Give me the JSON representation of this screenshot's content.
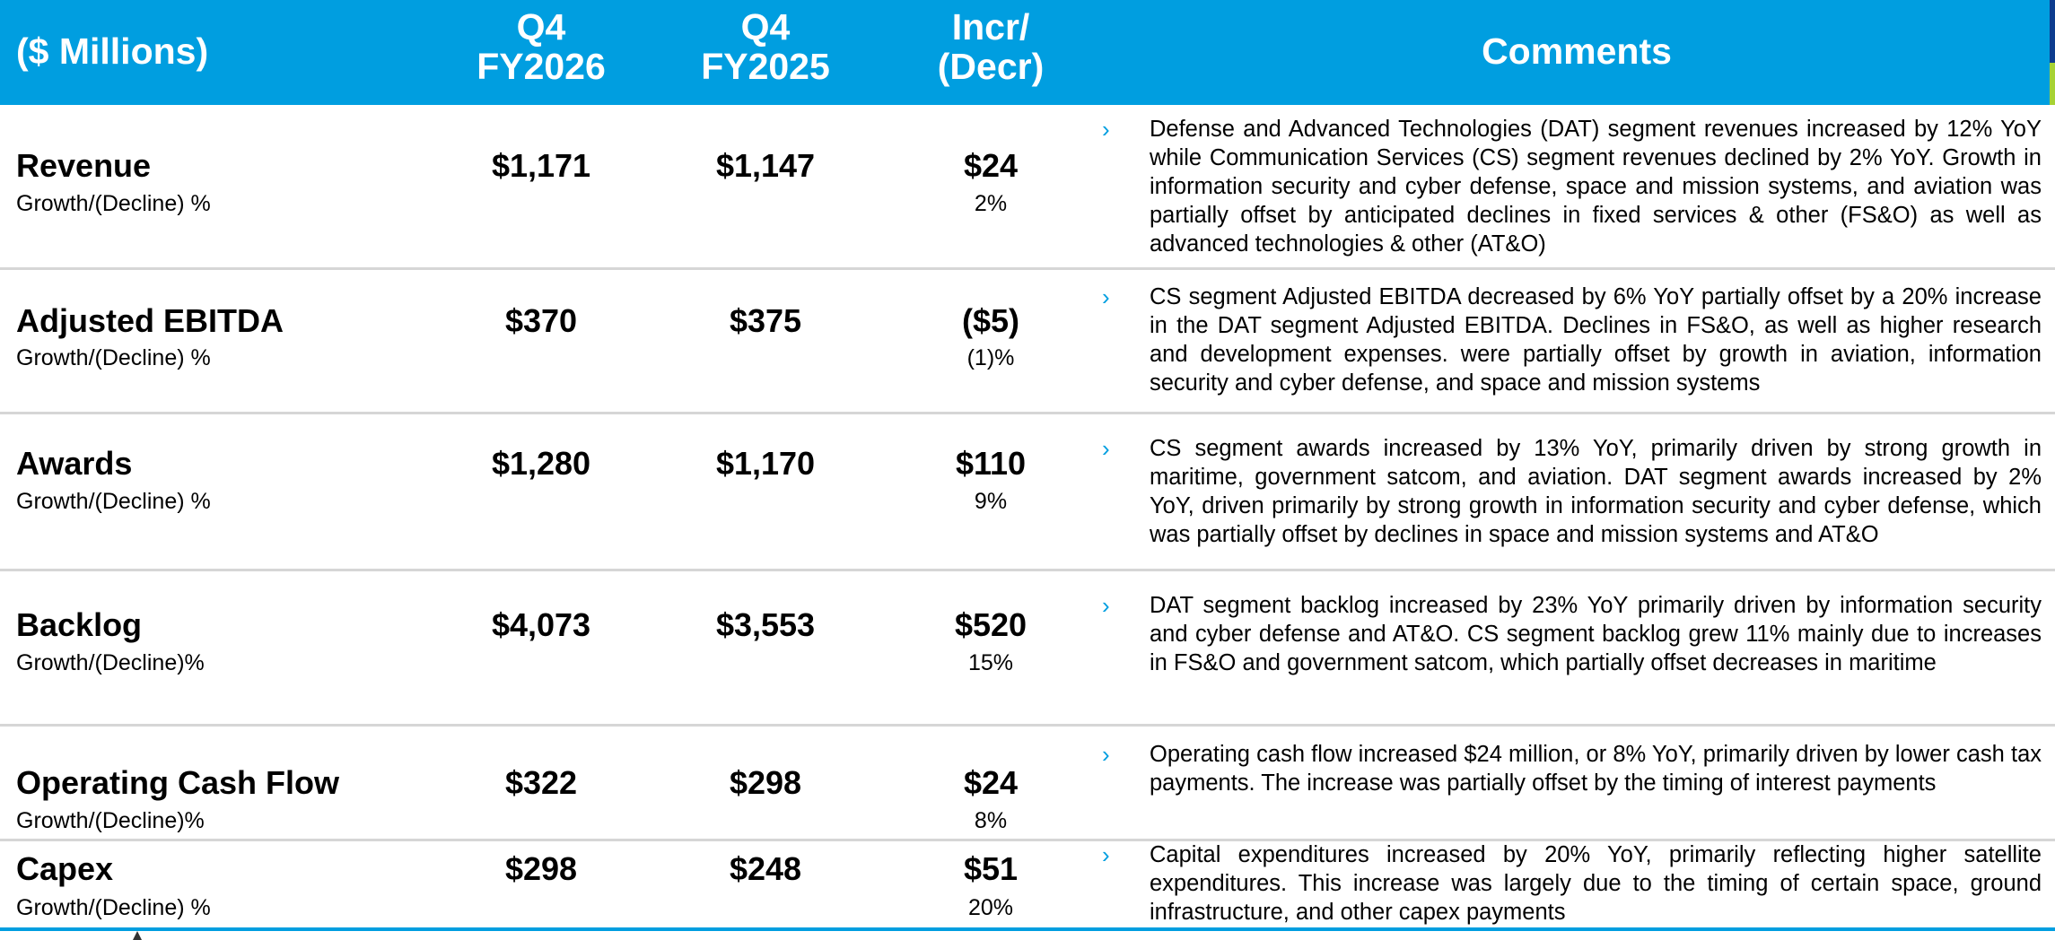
{
  "header": {
    "col_label": "($ Millions)",
    "col_fy26_line1": "Q4",
    "col_fy26_line2": "FY2026",
    "col_fy25_line1": "Q4",
    "col_fy25_line2": "FY2025",
    "col_change_line1": "Incr/",
    "col_change_line2": "(Decr)",
    "col_comments": "Comments"
  },
  "colors": {
    "header_bg": "#009ee0",
    "header_text": "#ffffff",
    "arrow": "#009ee0",
    "separator": "#d6d6d6"
  },
  "rows": [
    {
      "title": "Revenue",
      "subtitle": "Growth/(Decline) %",
      "fy26": "$1,171",
      "fy25": "$1,147",
      "change": "$24",
      "pct": "2%",
      "bullet": "›",
      "comment": "Defense and Advanced Technologies (DAT) segment revenues increased by 12% YoY while Communication Services (CS) segment revenues declined by 2% YoY. Growth in information security and cyber defense, space and mission systems, and aviation was partially offset by anticipated declines in fixed services & other (FS&O) as well as advanced technologies & other (AT&O)"
    },
    {
      "title": "Adjusted EBITDA",
      "subtitle": "Growth/(Decline) %",
      "fy26": "$370",
      "fy25": "$375",
      "change": "($5)",
      "pct": "(1)%",
      "bullet": "›",
      "comment": "CS segment Adjusted EBITDA decreased by 6% YoY partially offset by a 20% increase in the DAT segment Adjusted EBITDA.  Declines in FS&O, as well as higher research and development expenses. were partially offset by growth in aviation, information security and cyber defense, and space and mission systems"
    },
    {
      "title": "Awards",
      "subtitle": "Growth/(Decline) %",
      "fy26": "$1,280",
      "fy25": "$1,170",
      "change": "$110",
      "pct": "9%",
      "bullet": "›",
      "comment": "CS segment awards increased by 13% YoY, primarily driven by strong growth in maritime, government satcom, and aviation.  DAT segment awards increased by 2% YoY, driven primarily by strong growth in information security and cyber defense, which was partially offset by declines in space and mission systems and AT&O"
    },
    {
      "title": "Backlog",
      "subtitle": "Growth/(Decline)%",
      "fy26": "$4,073",
      "fy25": "$3,553",
      "change": "$520",
      "pct": "15%",
      "bullet": "›",
      "comment": "DAT segment backlog increased by 23% YoY primarily driven by information security and cyber defense and AT&O.  CS segment backlog grew 11% mainly due to increases in FS&O and government satcom, which partially offset decreases in maritime"
    },
    {
      "title": "Operating Cash Flow",
      "subtitle": "Growth/(Decline)%",
      "fy26": "$322",
      "fy25": "$298",
      "change": "$24",
      "pct": "8%",
      "bullet": "›",
      "comment": "Operating cash flow increased $24 million, or 8% YoY, primarily driven by lower cash tax payments.  The increase was partially offset by the timing of interest payments"
    },
    {
      "title": "Capex",
      "subtitle": "Growth/(Decline) %",
      "fy26": "$298",
      "fy25": "$248",
      "change": "$51",
      "pct": "20%",
      "bullet": "›",
      "comment": "Capital expenditures increased by 20% YoY, primarily reflecting higher satellite expenditures.  This increase was largely due to the timing of certain space, ground infrastructure, and other capex payments"
    }
  ]
}
